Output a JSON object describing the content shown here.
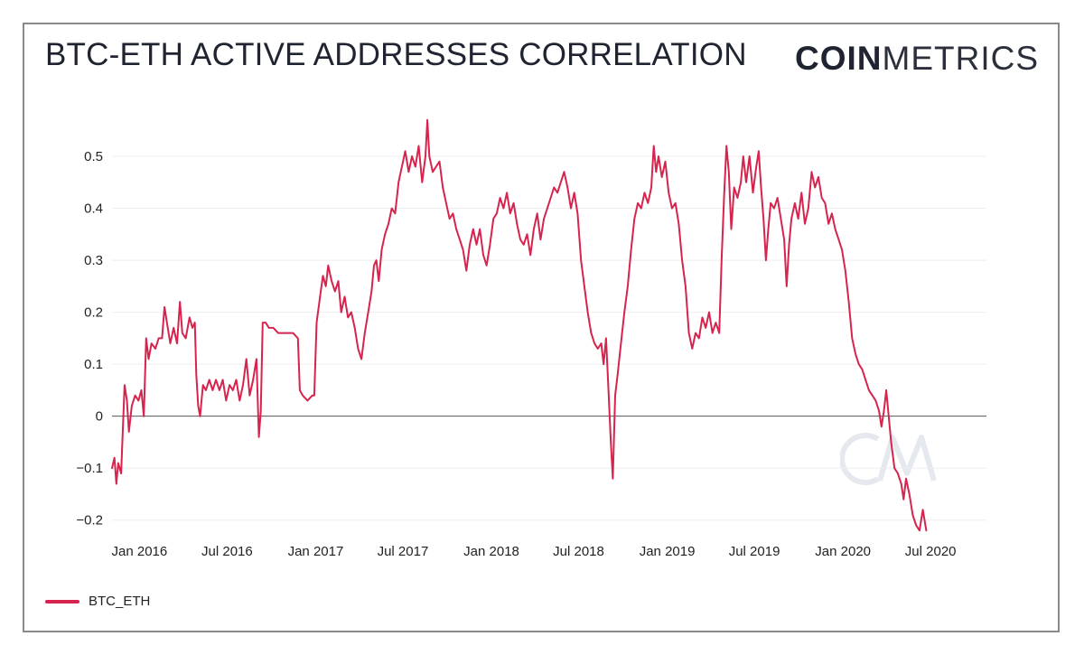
{
  "header": {
    "title": "BTC-ETH ACTIVE ADDRESSES CORRELATION",
    "logo_bold": "COIN",
    "logo_light": "METRICS"
  },
  "colors": {
    "series": "#d6244e",
    "grid": "#eeeeee",
    "zero_line": "#555555",
    "watermark": "#e6e8ef"
  },
  "legend": {
    "label": "BTC_ETH"
  },
  "chart_data": {
    "type": "line",
    "title": "BTC-ETH ACTIVE ADDRESSES CORRELATION",
    "xlabel": "",
    "ylabel": "",
    "xlim": [
      "2015-11-05",
      "2020-10-25"
    ],
    "ylim": [
      -0.23,
      0.58
    ],
    "grid": true,
    "legend_position": "bottom-left",
    "x_ticks": [
      "Jan 2016",
      "Jul 2016",
      "Jan 2017",
      "Jul 2017",
      "Jan 2018",
      "Jul 2018",
      "Jan 2019",
      "Jul 2019",
      "Jan 2020",
      "Jul 2020"
    ],
    "x_tick_dates": [
      "2016-01-01",
      "2016-07-01",
      "2017-01-01",
      "2017-07-01",
      "2018-01-01",
      "2018-07-01",
      "2019-01-01",
      "2019-07-01",
      "2020-01-01",
      "2020-07-01"
    ],
    "y_ticks": [
      -0.2,
      -0.1,
      0,
      0.1,
      0.2,
      0.3,
      0.4,
      0.5
    ],
    "y_tick_labels": [
      "−0.2",
      "−0.1",
      "0",
      "0.1",
      "0.2",
      "0.3",
      "0.4",
      "0.5"
    ],
    "series": [
      {
        "name": "BTC_ETH",
        "points": [
          [
            "2015-11-05",
            -0.1
          ],
          [
            "2015-11-10",
            -0.08
          ],
          [
            "2015-11-14",
            -0.13
          ],
          [
            "2015-11-18",
            -0.09
          ],
          [
            "2015-11-24",
            -0.11
          ],
          [
            "2015-12-01",
            0.06
          ],
          [
            "2015-12-06",
            0.03
          ],
          [
            "2015-12-10",
            -0.03
          ],
          [
            "2015-12-16",
            0.02
          ],
          [
            "2015-12-23",
            0.04
          ],
          [
            "2015-12-30",
            0.03
          ],
          [
            "2016-01-05",
            0.05
          ],
          [
            "2016-01-10",
            0.0
          ],
          [
            "2016-01-15",
            0.15
          ],
          [
            "2016-01-20",
            0.11
          ],
          [
            "2016-01-26",
            0.14
          ],
          [
            "2016-02-03",
            0.13
          ],
          [
            "2016-02-10",
            0.15
          ],
          [
            "2016-02-17",
            0.15
          ],
          [
            "2016-02-22",
            0.21
          ],
          [
            "2016-02-27",
            0.18
          ],
          [
            "2016-03-05",
            0.14
          ],
          [
            "2016-03-12",
            0.17
          ],
          [
            "2016-03-19",
            0.14
          ],
          [
            "2016-03-25",
            0.22
          ],
          [
            "2016-03-30",
            0.16
          ],
          [
            "2016-04-06",
            0.15
          ],
          [
            "2016-04-14",
            0.19
          ],
          [
            "2016-04-20",
            0.17
          ],
          [
            "2016-04-25",
            0.18
          ],
          [
            "2016-04-28",
            0.08
          ],
          [
            "2016-05-02",
            0.02
          ],
          [
            "2016-05-06",
            0.0
          ],
          [
            "2016-05-12",
            0.06
          ],
          [
            "2016-05-18",
            0.05
          ],
          [
            "2016-05-25",
            0.07
          ],
          [
            "2016-06-01",
            0.05
          ],
          [
            "2016-06-08",
            0.07
          ],
          [
            "2016-06-15",
            0.05
          ],
          [
            "2016-06-22",
            0.07
          ],
          [
            "2016-06-29",
            0.03
          ],
          [
            "2016-07-06",
            0.06
          ],
          [
            "2016-07-13",
            0.05
          ],
          [
            "2016-07-20",
            0.07
          ],
          [
            "2016-07-27",
            0.03
          ],
          [
            "2016-08-03",
            0.06
          ],
          [
            "2016-08-10",
            0.11
          ],
          [
            "2016-08-17",
            0.04
          ],
          [
            "2016-08-24",
            0.07
          ],
          [
            "2016-08-31",
            0.11
          ],
          [
            "2016-09-05",
            -0.04
          ],
          [
            "2016-09-09",
            0.01
          ],
          [
            "2016-09-13",
            0.18
          ],
          [
            "2016-09-19",
            0.18
          ],
          [
            "2016-09-26",
            0.17
          ],
          [
            "2016-10-05",
            0.17
          ],
          [
            "2016-10-15",
            0.16
          ],
          [
            "2016-10-25",
            0.16
          ],
          [
            "2016-11-05",
            0.16
          ],
          [
            "2016-11-15",
            0.16
          ],
          [
            "2016-11-25",
            0.15
          ],
          [
            "2016-11-29",
            0.05
          ],
          [
            "2016-12-05",
            0.04
          ],
          [
            "2016-12-15",
            0.03
          ],
          [
            "2016-12-25",
            0.04
          ],
          [
            "2016-12-29",
            0.04
          ],
          [
            "2017-01-03",
            0.18
          ],
          [
            "2017-01-10",
            0.23
          ],
          [
            "2017-01-16",
            0.27
          ],
          [
            "2017-01-22",
            0.25
          ],
          [
            "2017-01-27",
            0.29
          ],
          [
            "2017-02-03",
            0.26
          ],
          [
            "2017-02-10",
            0.24
          ],
          [
            "2017-02-17",
            0.26
          ],
          [
            "2017-02-23",
            0.2
          ],
          [
            "2017-03-02",
            0.23
          ],
          [
            "2017-03-09",
            0.19
          ],
          [
            "2017-03-16",
            0.2
          ],
          [
            "2017-03-23",
            0.17
          ],
          [
            "2017-03-30",
            0.13
          ],
          [
            "2017-04-06",
            0.11
          ],
          [
            "2017-04-13",
            0.16
          ],
          [
            "2017-04-20",
            0.2
          ],
          [
            "2017-04-27",
            0.24
          ],
          [
            "2017-05-02",
            0.29
          ],
          [
            "2017-05-07",
            0.3
          ],
          [
            "2017-05-12",
            0.26
          ],
          [
            "2017-05-18",
            0.32
          ],
          [
            "2017-05-25",
            0.35
          ],
          [
            "2017-06-01",
            0.37
          ],
          [
            "2017-06-08",
            0.4
          ],
          [
            "2017-06-15",
            0.39
          ],
          [
            "2017-06-22",
            0.45
          ],
          [
            "2017-06-29",
            0.48
          ],
          [
            "2017-07-06",
            0.51
          ],
          [
            "2017-07-13",
            0.47
          ],
          [
            "2017-07-20",
            0.5
          ],
          [
            "2017-07-27",
            0.48
          ],
          [
            "2017-08-03",
            0.52
          ],
          [
            "2017-08-10",
            0.45
          ],
          [
            "2017-08-17",
            0.5
          ],
          [
            "2017-08-21",
            0.57
          ],
          [
            "2017-08-25",
            0.5
          ],
          [
            "2017-09-01",
            0.47
          ],
          [
            "2017-09-08",
            0.48
          ],
          [
            "2017-09-15",
            0.49
          ],
          [
            "2017-09-22",
            0.44
          ],
          [
            "2017-09-29",
            0.41
          ],
          [
            "2017-10-06",
            0.38
          ],
          [
            "2017-10-13",
            0.39
          ],
          [
            "2017-10-20",
            0.36
          ],
          [
            "2017-10-27",
            0.34
          ],
          [
            "2017-11-03",
            0.32
          ],
          [
            "2017-11-10",
            0.28
          ],
          [
            "2017-11-17",
            0.33
          ],
          [
            "2017-11-24",
            0.36
          ],
          [
            "2017-12-01",
            0.33
          ],
          [
            "2017-12-08",
            0.36
          ],
          [
            "2017-12-15",
            0.31
          ],
          [
            "2017-12-22",
            0.29
          ],
          [
            "2017-12-29",
            0.33
          ],
          [
            "2018-01-05",
            0.38
          ],
          [
            "2018-01-12",
            0.39
          ],
          [
            "2018-01-19",
            0.42
          ],
          [
            "2018-01-26",
            0.4
          ],
          [
            "2018-02-02",
            0.43
          ],
          [
            "2018-02-09",
            0.39
          ],
          [
            "2018-02-16",
            0.41
          ],
          [
            "2018-02-23",
            0.37
          ],
          [
            "2018-03-02",
            0.34
          ],
          [
            "2018-03-09",
            0.33
          ],
          [
            "2018-03-16",
            0.35
          ],
          [
            "2018-03-23",
            0.31
          ],
          [
            "2018-03-30",
            0.36
          ],
          [
            "2018-04-06",
            0.39
          ],
          [
            "2018-04-13",
            0.34
          ],
          [
            "2018-04-20",
            0.38
          ],
          [
            "2018-04-27",
            0.4
          ],
          [
            "2018-05-04",
            0.42
          ],
          [
            "2018-05-11",
            0.44
          ],
          [
            "2018-05-18",
            0.43
          ],
          [
            "2018-05-25",
            0.45
          ],
          [
            "2018-06-01",
            0.47
          ],
          [
            "2018-06-08",
            0.44
          ],
          [
            "2018-06-15",
            0.4
          ],
          [
            "2018-06-22",
            0.43
          ],
          [
            "2018-06-29",
            0.39
          ],
          [
            "2018-07-06",
            0.3
          ],
          [
            "2018-07-13",
            0.25
          ],
          [
            "2018-07-20",
            0.2
          ],
          [
            "2018-07-27",
            0.16
          ],
          [
            "2018-08-03",
            0.14
          ],
          [
            "2018-08-10",
            0.13
          ],
          [
            "2018-08-17",
            0.14
          ],
          [
            "2018-08-22",
            0.1
          ],
          [
            "2018-08-27",
            0.15
          ],
          [
            "2018-09-01",
            0.05
          ],
          [
            "2018-09-06",
            -0.05
          ],
          [
            "2018-09-10",
            -0.12
          ],
          [
            "2018-09-15",
            0.04
          ],
          [
            "2018-09-20",
            0.08
          ],
          [
            "2018-09-27",
            0.14
          ],
          [
            "2018-10-04",
            0.2
          ],
          [
            "2018-10-11",
            0.25
          ],
          [
            "2018-10-18",
            0.32
          ],
          [
            "2018-10-25",
            0.38
          ],
          [
            "2018-11-01",
            0.41
          ],
          [
            "2018-11-08",
            0.4
          ],
          [
            "2018-11-15",
            0.43
          ],
          [
            "2018-11-22",
            0.41
          ],
          [
            "2018-11-29",
            0.44
          ],
          [
            "2018-12-04",
            0.52
          ],
          [
            "2018-12-09",
            0.47
          ],
          [
            "2018-12-14",
            0.5
          ],
          [
            "2018-12-21",
            0.46
          ],
          [
            "2018-12-28",
            0.49
          ],
          [
            "2019-01-04",
            0.43
          ],
          [
            "2019-01-11",
            0.4
          ],
          [
            "2019-01-18",
            0.41
          ],
          [
            "2019-01-25",
            0.37
          ],
          [
            "2019-02-01",
            0.3
          ],
          [
            "2019-02-08",
            0.25
          ],
          [
            "2019-02-15",
            0.16
          ],
          [
            "2019-02-22",
            0.13
          ],
          [
            "2019-03-01",
            0.16
          ],
          [
            "2019-03-08",
            0.15
          ],
          [
            "2019-03-15",
            0.19
          ],
          [
            "2019-03-22",
            0.17
          ],
          [
            "2019-03-29",
            0.2
          ],
          [
            "2019-04-05",
            0.16
          ],
          [
            "2019-04-12",
            0.18
          ],
          [
            "2019-04-19",
            0.16
          ],
          [
            "2019-04-24",
            0.3
          ],
          [
            "2019-04-29",
            0.42
          ],
          [
            "2019-05-04",
            0.52
          ],
          [
            "2019-05-09",
            0.47
          ],
          [
            "2019-05-14",
            0.36
          ],
          [
            "2019-05-20",
            0.44
          ],
          [
            "2019-05-27",
            0.42
          ],
          [
            "2019-06-03",
            0.45
          ],
          [
            "2019-06-08",
            0.5
          ],
          [
            "2019-06-14",
            0.45
          ],
          [
            "2019-06-21",
            0.5
          ],
          [
            "2019-06-28",
            0.43
          ],
          [
            "2019-07-05",
            0.48
          ],
          [
            "2019-07-10",
            0.51
          ],
          [
            "2019-07-15",
            0.44
          ],
          [
            "2019-07-20",
            0.38
          ],
          [
            "2019-07-25",
            0.3
          ],
          [
            "2019-07-30",
            0.36
          ],
          [
            "2019-08-04",
            0.41
          ],
          [
            "2019-08-11",
            0.4
          ],
          [
            "2019-08-18",
            0.42
          ],
          [
            "2019-08-25",
            0.38
          ],
          [
            "2019-09-01",
            0.34
          ],
          [
            "2019-09-06",
            0.25
          ],
          [
            "2019-09-11",
            0.33
          ],
          [
            "2019-09-16",
            0.38
          ],
          [
            "2019-09-23",
            0.41
          ],
          [
            "2019-09-30",
            0.38
          ],
          [
            "2019-10-07",
            0.43
          ],
          [
            "2019-10-14",
            0.37
          ],
          [
            "2019-10-21",
            0.4
          ],
          [
            "2019-10-28",
            0.47
          ],
          [
            "2019-11-04",
            0.44
          ],
          [
            "2019-11-11",
            0.46
          ],
          [
            "2019-11-18",
            0.42
          ],
          [
            "2019-11-25",
            0.41
          ],
          [
            "2019-12-02",
            0.37
          ],
          [
            "2019-12-09",
            0.39
          ],
          [
            "2019-12-16",
            0.36
          ],
          [
            "2019-12-23",
            0.34
          ],
          [
            "2019-12-30",
            0.32
          ],
          [
            "2020-01-06",
            0.28
          ],
          [
            "2020-01-13",
            0.22
          ],
          [
            "2020-01-20",
            0.15
          ],
          [
            "2020-01-27",
            0.12
          ],
          [
            "2020-02-03",
            0.1
          ],
          [
            "2020-02-10",
            0.09
          ],
          [
            "2020-02-17",
            0.07
          ],
          [
            "2020-02-24",
            0.05
          ],
          [
            "2020-03-02",
            0.04
          ],
          [
            "2020-03-09",
            0.03
          ],
          [
            "2020-03-16",
            0.01
          ],
          [
            "2020-03-21",
            -0.02
          ],
          [
            "2020-03-26",
            0.01
          ],
          [
            "2020-03-31",
            0.05
          ],
          [
            "2020-04-05",
            0.0
          ],
          [
            "2020-04-10",
            -0.05
          ],
          [
            "2020-04-17",
            -0.1
          ],
          [
            "2020-04-24",
            -0.11
          ],
          [
            "2020-05-01",
            -0.13
          ],
          [
            "2020-05-06",
            -0.16
          ],
          [
            "2020-05-11",
            -0.12
          ],
          [
            "2020-05-18",
            -0.15
          ],
          [
            "2020-05-25",
            -0.19
          ],
          [
            "2020-06-01",
            -0.21
          ],
          [
            "2020-06-08",
            -0.22
          ],
          [
            "2020-06-15",
            -0.18
          ],
          [
            "2020-06-22",
            -0.22
          ]
        ]
      }
    ]
  }
}
